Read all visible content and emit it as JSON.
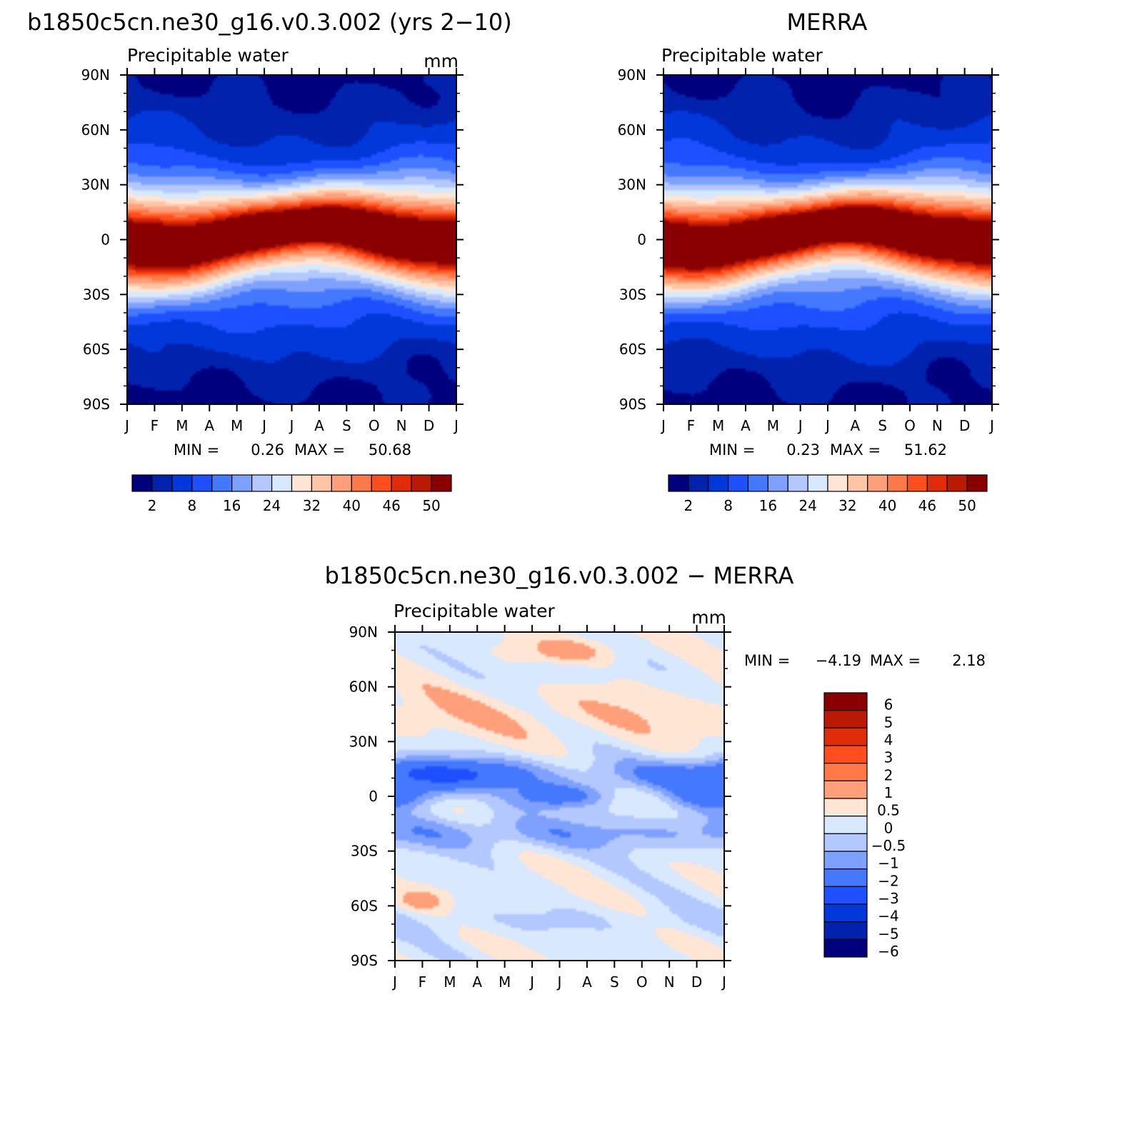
{
  "chart_data": [
    {
      "type": "heatmap",
      "title": "b1850c5cn.ne30_g16.v0.3.002 (yrs 2−10)",
      "subtitle": "Precipitable water",
      "units": "mm",
      "x_ticks": [
        "J",
        "F",
        "M",
        "A",
        "M",
        "J",
        "J",
        "A",
        "S",
        "O",
        "N",
        "D",
        "J"
      ],
      "y_ticks": [
        "90N",
        "60N",
        "30N",
        "0",
        "30S",
        "60S",
        "90S"
      ],
      "xlim": [
        0,
        12
      ],
      "ylim": [
        -90,
        90
      ],
      "min_text": "MIN =",
      "min_value": "0.26",
      "max_text": "MAX =",
      "max_value": "50.68",
      "colorbar_labels": [
        "2",
        "8",
        "16",
        "24",
        "32",
        "40",
        "46",
        "50"
      ],
      "colorbar_colors": [
        "#00007e",
        "#0022ac",
        "#0038da",
        "#1e50ff",
        "#4478ff",
        "#7ea0ff",
        "#b2c8ff",
        "#d8e8ff",
        "#ffe6d4",
        "#ffc6a6",
        "#ffa07a",
        "#ff7a48",
        "#ff4e1e",
        "#e02c08",
        "#ba1a04",
        "#8a0000"
      ],
      "peak_month": 6.7,
      "peak_lat": 8,
      "peak_value": 50.68
    },
    {
      "type": "heatmap",
      "title": "MERRA",
      "subtitle": "Precipitable water",
      "units": "",
      "x_ticks": [
        "J",
        "F",
        "M",
        "A",
        "M",
        "J",
        "J",
        "A",
        "S",
        "O",
        "N",
        "D",
        "J"
      ],
      "y_ticks": [
        "90N",
        "60N",
        "30N",
        "0",
        "30S",
        "60S",
        "90S"
      ],
      "xlim": [
        0,
        12
      ],
      "ylim": [
        -90,
        90
      ],
      "min_text": "MIN =",
      "min_value": "0.23",
      "max_text": "MAX =",
      "max_value": "51.62",
      "colorbar_labels": [
        "2",
        "8",
        "16",
        "24",
        "32",
        "40",
        "46",
        "50"
      ],
      "colorbar_colors": [
        "#00007e",
        "#0022ac",
        "#0038da",
        "#1e50ff",
        "#4478ff",
        "#7ea0ff",
        "#b2c8ff",
        "#d8e8ff",
        "#ffe6d4",
        "#ffc6a6",
        "#ffa07a",
        "#ff7a48",
        "#ff4e1e",
        "#e02c08",
        "#ba1a04",
        "#8a0000"
      ],
      "peak_month": 6.8,
      "peak_lat": 9,
      "peak_value": 51.62
    },
    {
      "type": "heatmap",
      "title": "b1850c5cn.ne30_g16.v0.3.002 − MERRA",
      "subtitle": "Precipitable water",
      "units": "mm",
      "x_ticks": [
        "J",
        "F",
        "M",
        "A",
        "M",
        "J",
        "J",
        "A",
        "S",
        "O",
        "N",
        "D",
        "J"
      ],
      "y_ticks": [
        "90N",
        "60N",
        "30N",
        "0",
        "30S",
        "60S",
        "90S"
      ],
      "xlim": [
        0,
        12
      ],
      "ylim": [
        -90,
        90
      ],
      "min_text": "MIN =",
      "min_value": "−4.19",
      "max_text": "MAX =",
      "max_value": "2.18",
      "colorbar_labels": [
        "6",
        "5",
        "4",
        "3",
        "2",
        "1",
        "0.5",
        "0",
        "−0.5",
        "−1",
        "−2",
        "−3",
        "−4",
        "−5",
        "−6"
      ],
      "colorbar_colors": [
        "#8a0000",
        "#ba1a04",
        "#e02c08",
        "#ff4e1e",
        "#ff7a48",
        "#ffa07a",
        "#ffe6d4",
        "#d8e8ff",
        "#b2c8ff",
        "#7ea0ff",
        "#4478ff",
        "#1e50ff",
        "#0038da",
        "#0022ac",
        "#00007e"
      ],
      "min_value_num": -4.19,
      "max_value_num": 2.18
    }
  ]
}
